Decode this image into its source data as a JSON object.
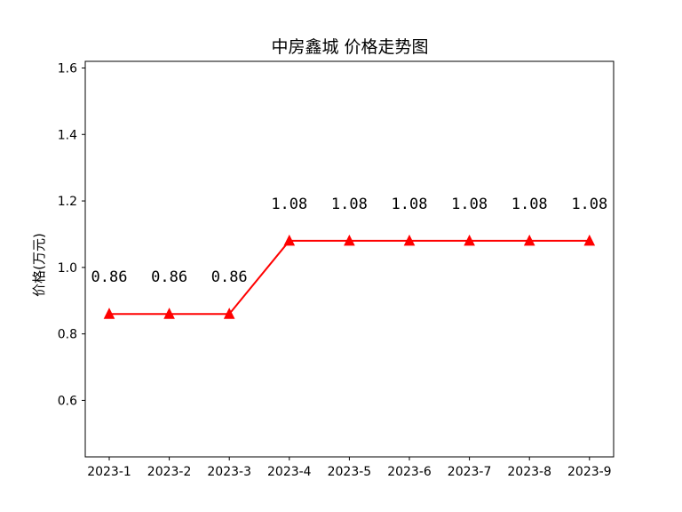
{
  "chart_data": {
    "type": "line",
    "title": "中房鑫城 价格走势图",
    "xlabel": "",
    "ylabel": "价格(万元)",
    "categories": [
      "2023-1",
      "2023-2",
      "2023-3",
      "2023-4",
      "2023-5",
      "2023-6",
      "2023-7",
      "2023-8",
      "2023-9"
    ],
    "series": [
      {
        "values": [
          0.86,
          0.86,
          0.86,
          1.08,
          1.08,
          1.08,
          1.08,
          1.08,
          1.08
        ],
        "color": "#ff0000",
        "marker": "triangle-up"
      }
    ],
    "data_labels": [
      "0.86",
      "0.86",
      "0.86",
      "1.08",
      "1.08",
      "1.08",
      "1.08",
      "1.08",
      "1.08"
    ],
    "ylim": [
      0.43,
      1.62
    ],
    "yticks": [
      0.6,
      0.8,
      1.0,
      1.2,
      1.4,
      1.6
    ],
    "ytick_labels": [
      "0.6",
      "0.8",
      "1.0",
      "1.2",
      "1.4",
      "1.6"
    ],
    "grid": false,
    "legend": "none"
  }
}
